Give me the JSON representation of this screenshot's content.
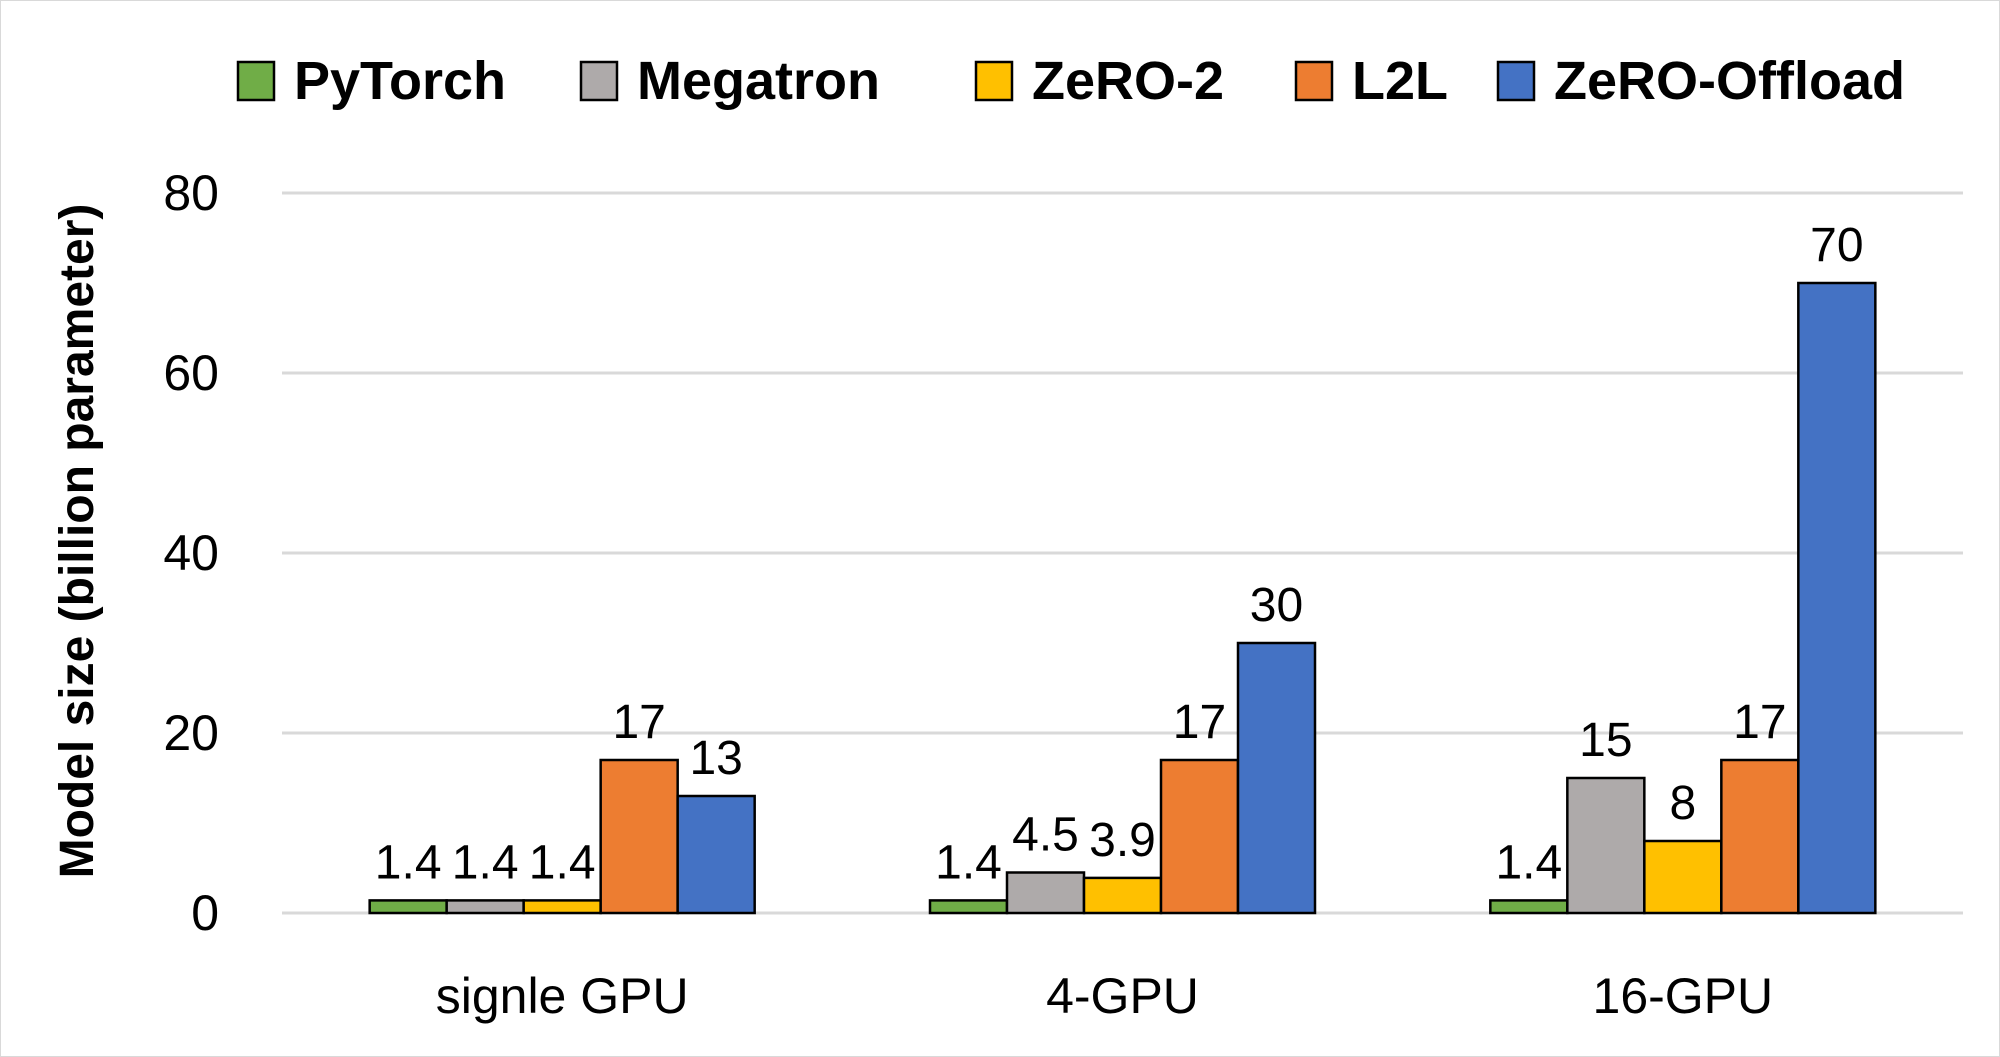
{
  "chart_data": {
    "type": "bar",
    "title": "",
    "xlabel": "",
    "ylabel": "Model size (billion parameter)",
    "ylim": [
      0,
      80
    ],
    "yticks": [
      "0",
      "20",
      "40",
      "60",
      "80"
    ],
    "grid": true,
    "legend_position": "top",
    "categories": [
      "signle GPU",
      "4-GPU",
      "16-GPU"
    ],
    "series": [
      {
        "name": "PyTorch",
        "color": "#70AD47",
        "values": [
          1.4,
          1.4,
          1.4
        ],
        "labels": [
          "1.4",
          "1.4",
          "1.4"
        ]
      },
      {
        "name": "Megatron",
        "color": "#AEAAAA",
        "values": [
          1.4,
          4.5,
          15
        ],
        "labels": [
          "1.4",
          "4.5",
          "15"
        ]
      },
      {
        "name": "ZeRO-2",
        "color": "#FFC000",
        "values": [
          1.4,
          3.9,
          8
        ],
        "labels": [
          "1.4",
          "3.9",
          "8"
        ]
      },
      {
        "name": "L2L",
        "color": "#ED7D31",
        "values": [
          17,
          17,
          17
        ],
        "labels": [
          "17",
          "17",
          "17"
        ]
      },
      {
        "name": "ZeRO-Offload",
        "color": "#4472C4",
        "values": [
          13,
          30,
          70
        ],
        "labels": [
          "13",
          "30",
          "70"
        ]
      }
    ]
  }
}
